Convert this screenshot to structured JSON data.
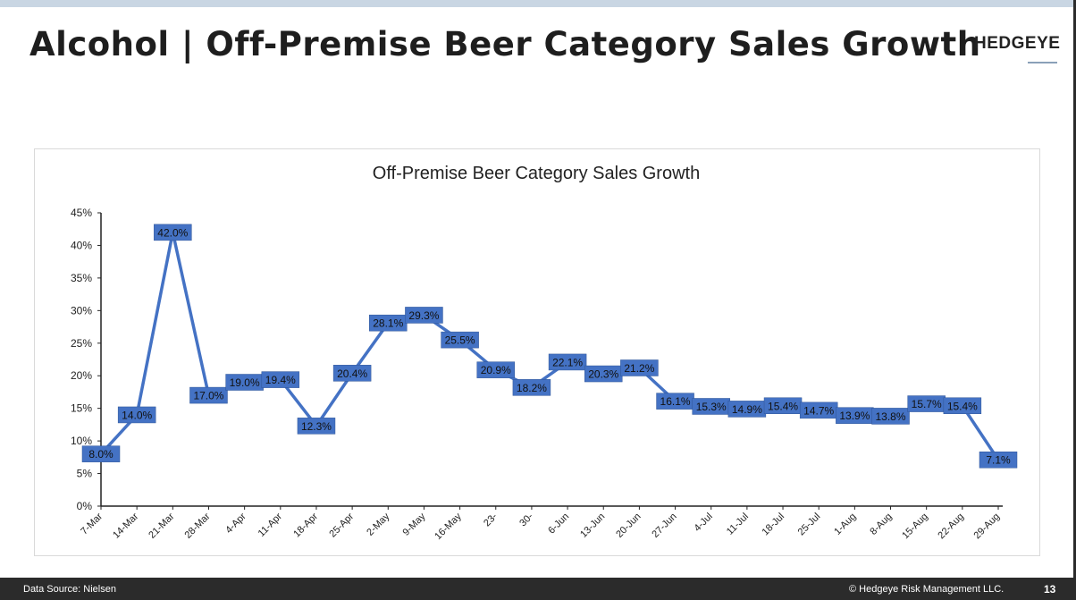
{
  "header": {
    "title": "Alcohol | Off-Premise Beer Category Sales Growth",
    "logo": "HEDGEYE"
  },
  "footer": {
    "source": "Data Source: Nielsen",
    "copyright": "© Hedgeye Risk Management LLC.",
    "page": "13"
  },
  "colors": {
    "line": "#4472c4",
    "label_bg": "#4472c4"
  },
  "chart_data": {
    "type": "line",
    "title": "Off-Premise Beer Category Sales Growth",
    "categories": [
      "7-Mar",
      "14-Mar",
      "21-Mar",
      "28-Mar",
      "4-Apr",
      "11-Apr",
      "18-Apr",
      "25-Apr",
      "2-May",
      "9-May",
      "16-May",
      "23-",
      "30-",
      "6-Jun",
      "13-Jun",
      "20-Jun",
      "27-Jun",
      "4-Jul",
      "11-Jul",
      "18-Jul",
      "25-Jul",
      "1-Aug",
      "8-Aug",
      "15-Aug",
      "22-Aug",
      "29-Aug"
    ],
    "values": [
      8.0,
      14.0,
      42.0,
      17.0,
      19.0,
      19.4,
      12.3,
      20.4,
      28.1,
      29.3,
      25.5,
      20.9,
      18.2,
      22.1,
      20.3,
      21.2,
      16.1,
      15.3,
      14.9,
      15.4,
      14.7,
      13.9,
      13.8,
      15.7,
      15.4,
      7.1
    ],
    "data_labels": [
      "8.0%",
      "14.0%",
      "42.0%",
      "17.0%",
      "19.0%",
      "19.4%",
      "12.3%",
      "20.4%",
      "28.1%",
      "29.3%",
      "25.5%",
      "20.9%",
      "18.2%",
      "22.1%",
      "20.3%",
      "21.2%",
      "16.1%",
      "15.3%",
      "14.9%",
      "15.4%",
      "14.7%",
      "13.9%",
      "13.8%",
      "15.7%",
      "15.4%",
      "7.1%"
    ],
    "yticks": [
      "0%",
      "5%",
      "10%",
      "15%",
      "20%",
      "25%",
      "30%",
      "35%",
      "40%",
      "45%"
    ],
    "ylim": [
      0,
      45
    ],
    "grid": false,
    "legend": "none"
  }
}
